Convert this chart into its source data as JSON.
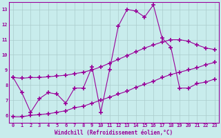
{
  "xlabel": "Windchill (Refroidissement éolien,°C)",
  "background_color": "#c8ecec",
  "grid_color": "#aacccc",
  "line_color": "#990099",
  "xlim": [
    -0.5,
    23.5
  ],
  "ylim": [
    5.5,
    13.5
  ],
  "xticks": [
    0,
    1,
    2,
    3,
    4,
    5,
    6,
    7,
    8,
    9,
    10,
    11,
    12,
    13,
    14,
    15,
    16,
    17,
    18,
    19,
    20,
    21,
    22,
    23
  ],
  "yticks": [
    6,
    7,
    8,
    9,
    10,
    11,
    12,
    13
  ],
  "line1_x": [
    0,
    1,
    2,
    3,
    4,
    5,
    6,
    7,
    8,
    9,
    10,
    11,
    12,
    13,
    14,
    15,
    16,
    17,
    18,
    19,
    20,
    21,
    22,
    23
  ],
  "line1_y": [
    8.5,
    7.5,
    6.2,
    7.1,
    7.5,
    7.4,
    6.8,
    7.8,
    7.8,
    9.2,
    6.2,
    9.0,
    11.9,
    13.0,
    12.9,
    12.5,
    13.3,
    11.1,
    10.5,
    7.8,
    7.8,
    8.1,
    8.2,
    8.4
  ],
  "line2_x": [
    0,
    1,
    2,
    3,
    4,
    5,
    6,
    7,
    8,
    9,
    10,
    11,
    12,
    13,
    14,
    15,
    16,
    17,
    18,
    19,
    20,
    21,
    22,
    23
  ],
  "line2_y": [
    5.9,
    5.9,
    6.0,
    6.05,
    6.1,
    6.2,
    6.3,
    6.5,
    6.6,
    6.8,
    7.0,
    7.2,
    7.4,
    7.6,
    7.85,
    8.05,
    8.25,
    8.5,
    8.7,
    8.85,
    9.0,
    9.15,
    9.35,
    9.5
  ],
  "line3_x": [
    0,
    1,
    2,
    3,
    4,
    5,
    6,
    7,
    8,
    9,
    10,
    11,
    12,
    13,
    14,
    15,
    16,
    17,
    18,
    19,
    20,
    21,
    22,
    23
  ],
  "line3_y": [
    8.5,
    8.45,
    8.5,
    8.5,
    8.55,
    8.6,
    8.65,
    8.75,
    8.85,
    9.0,
    9.2,
    9.45,
    9.7,
    9.95,
    10.2,
    10.45,
    10.65,
    10.85,
    11.0,
    11.0,
    10.9,
    10.65,
    10.45,
    10.35
  ]
}
